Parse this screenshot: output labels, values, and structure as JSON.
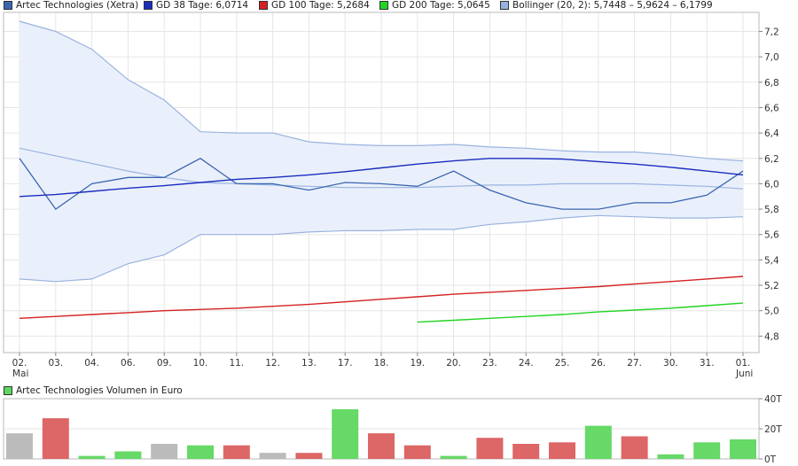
{
  "legend": [
    {
      "label": "Artec Technologies (Xetra)",
      "color": "#3a66b0"
    },
    {
      "label": "GD 38 Tage: 6,0714",
      "color": "#1a2dbf"
    },
    {
      "label": "GD 100 Tage: 5,2684",
      "color": "#d42222"
    },
    {
      "label": "GD 200 Tage: 5,0645",
      "color": "#22d422"
    },
    {
      "label": "Bollinger (20, 2): 5,7448 – 5,9624 – 6,1799",
      "color": "#99b3e0"
    }
  ],
  "volume_legend": {
    "label": "Artec Technologies Volumen in Euro",
    "color": "#5fd65f"
  },
  "chart_data": [
    {
      "type": "line",
      "title": "",
      "x": [
        "02.",
        "03.",
        "04.",
        "06.",
        "09.",
        "10.",
        "11.",
        "12.",
        "13.",
        "17.",
        "18.",
        "19.",
        "20.",
        "23.",
        "24.",
        "25.",
        "26.",
        "27.",
        "30.",
        "31.",
        "01."
      ],
      "x_sublabels": {
        "0": "Mai",
        "20": "Juni"
      },
      "ylim": [
        4.67,
        7.35
      ],
      "yticks": [
        "4,8",
        "5,0",
        "5,2",
        "5,4",
        "5,6",
        "5,8",
        "6,0",
        "6,2",
        "6,4",
        "6,6",
        "6,8",
        "7,0",
        "7,2"
      ],
      "ytick_values": [
        4.8,
        5.0,
        5.2,
        5.4,
        5.6,
        5.8,
        6.0,
        6.2,
        6.4,
        6.6,
        6.8,
        7.0,
        7.2
      ],
      "grid": true,
      "series": [
        {
          "name": "Artec Technologies (Xetra)",
          "color": "#3a66b0",
          "values": [
            6.2,
            5.8,
            6.0,
            6.05,
            6.05,
            6.2,
            6.0,
            6.0,
            5.95,
            6.01,
            6.0,
            5.98,
            6.1,
            5.95,
            5.85,
            5.8,
            5.8,
            5.85,
            5.85,
            5.91,
            6.1
          ]
        },
        {
          "name": "GD 38 Tage: 6,0714",
          "color": "#1a2dbf",
          "values": [
            5.9,
            5.915,
            5.94,
            5.965,
            5.985,
            6.01,
            6.035,
            6.05,
            6.07,
            6.095,
            6.125,
            6.155,
            6.18,
            6.2,
            6.2,
            6.195,
            6.175,
            6.155,
            6.13,
            6.1,
            6.07
          ]
        },
        {
          "name": "GD 100 Tage: 5,2684",
          "color": "#d42222",
          "values": [
            4.94,
            4.955,
            4.97,
            4.985,
            5.0,
            5.01,
            5.02,
            5.035,
            5.05,
            5.07,
            5.09,
            5.11,
            5.13,
            5.145,
            5.16,
            5.175,
            5.19,
            5.21,
            5.23,
            5.25,
            5.27
          ]
        },
        {
          "name": "GD 200 Tage: 5,0645",
          "color": "#22d422",
          "values": [
            null,
            null,
            null,
            null,
            null,
            null,
            null,
            null,
            null,
            null,
            null,
            4.91,
            4.925,
            4.94,
            4.955,
            4.97,
            4.99,
            5.005,
            5.02,
            5.04,
            5.06
          ]
        }
      ],
      "bollinger": {
        "name": "Bollinger (20, 2): 5,7448 – 5,9624 – 6,1799",
        "upper": [
          7.28,
          7.2,
          7.06,
          6.82,
          6.66,
          6.41,
          6.4,
          6.4,
          6.33,
          6.31,
          6.3,
          6.3,
          6.31,
          6.29,
          6.28,
          6.26,
          6.25,
          6.25,
          6.23,
          6.2,
          6.18
        ],
        "middle": [
          6.28,
          6.22,
          6.16,
          6.1,
          6.05,
          6.01,
          6.0,
          5.99,
          5.98,
          5.97,
          5.97,
          5.97,
          5.98,
          5.99,
          5.99,
          6.0,
          6.0,
          6.0,
          5.99,
          5.98,
          5.96
        ],
        "lower": [
          5.25,
          5.23,
          5.25,
          5.37,
          5.44,
          5.6,
          5.6,
          5.6,
          5.62,
          5.63,
          5.63,
          5.64,
          5.64,
          5.68,
          5.7,
          5.73,
          5.75,
          5.74,
          5.73,
          5.73,
          5.74
        ],
        "band_fill": "#eaf0fb",
        "line_color": "#99b3e0"
      }
    },
    {
      "type": "bar",
      "title": "Artec Technologies Volumen in Euro",
      "ylim": [
        0,
        40
      ],
      "yticks": [
        "0T",
        "20T",
        "40T"
      ],
      "ytick_values": [
        0,
        20,
        40
      ],
      "values": [
        17,
        27,
        2,
        5,
        10,
        9,
        9,
        4,
        4,
        33,
        17,
        9,
        2,
        14,
        10,
        11,
        22,
        15,
        3,
        11,
        13
      ],
      "bar_colors": [
        "#bbbbbb",
        "#dd6666",
        "#66d966",
        "#66d966",
        "#bbbbbb",
        "#66d966",
        "#dd6666",
        "#bbbbbb",
        "#dd6666",
        "#66d966",
        "#dd6666",
        "#dd6666",
        "#66d966",
        "#dd6666",
        "#dd6666",
        "#dd6666",
        "#66d966",
        "#dd6666",
        "#66d966",
        "#66d966",
        "#66d966"
      ]
    }
  ]
}
